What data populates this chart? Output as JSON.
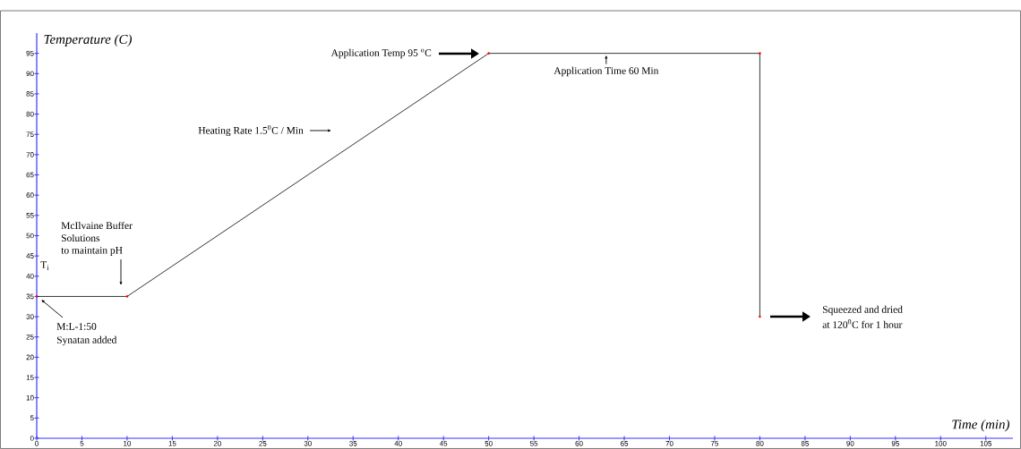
{
  "chart_data": {
    "type": "line",
    "xlabel": "Time (min)",
    "ylabel": "Temperature (C)",
    "x": [
      0,
      10,
      50,
      80,
      80
    ],
    "series": [
      {
        "color": "#000000",
        "values": [
          35,
          35,
          95,
          95,
          30
        ],
        "colors": [
          "#ff0000",
          "#ff0000",
          "#ff0000",
          "#ff0000",
          "#ff0000"
        ]
      }
    ],
    "marker": "circle",
    "line_style": "solid",
    "grid": false,
    "xlim": [
      0,
      108
    ],
    "ylim": [
      0,
      100
    ],
    "xticks": [
      0,
      5,
      10,
      15,
      20,
      25,
      30,
      35,
      40,
      45,
      50,
      55,
      60,
      65,
      70,
      75,
      80,
      85,
      90,
      95,
      100,
      105
    ],
    "yticks": [
      0,
      5,
      10,
      15,
      20,
      25,
      30,
      35,
      40,
      45,
      50,
      55,
      60,
      65,
      70,
      75,
      80,
      85,
      90,
      95
    ],
    "annotations": [
      "Heating Rate 1.5$^{0}$C / Min",
      "Application Temp 95 $^{o}$C",
      {
        "text": "Application Time 60 Min",
        "x": 63,
        "y": 95
      },
      "McIlvaine Buffer",
      "Solutions",
      "to maintain pH",
      "T$_{i}$",
      "M:L-1:50",
      "Synatan added",
      "Squeezed and dried",
      "at 120$^{0}$C for 1 hour"
    ]
  }
}
